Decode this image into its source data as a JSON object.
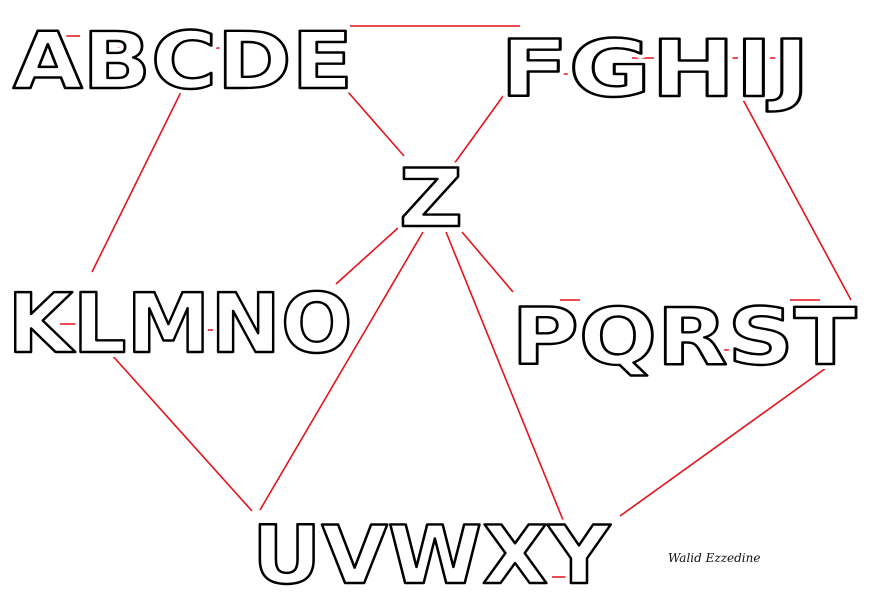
{
  "nodes": [
    {
      "id": "abcde",
      "label": "ABCDE"
    },
    {
      "id": "fghij",
      "label": "FGHIJ"
    },
    {
      "id": "z",
      "label": "Z"
    },
    {
      "id": "klmno",
      "label": "KLMNO"
    },
    {
      "id": "pqrst",
      "label": "PQRST"
    },
    {
      "id": "uvwxy",
      "label": "UVWXY"
    }
  ],
  "edges": [
    [
      "abcde",
      "fghij"
    ],
    [
      "abcde",
      "z"
    ],
    [
      "abcde",
      "klmno"
    ],
    [
      "fghij",
      "z"
    ],
    [
      "fghij",
      "pqrst"
    ],
    [
      "z",
      "klmno"
    ],
    [
      "z",
      "pqrst"
    ],
    [
      "z",
      "uvwxy"
    ],
    [
      "klmno",
      "uvwxy"
    ],
    [
      "pqrst",
      "uvwxy"
    ]
  ],
  "colors": {
    "edge": "#e4141b",
    "letter_outline": "#000000",
    "background": "#ffffff"
  },
  "signature": "Walid Ezzedine"
}
